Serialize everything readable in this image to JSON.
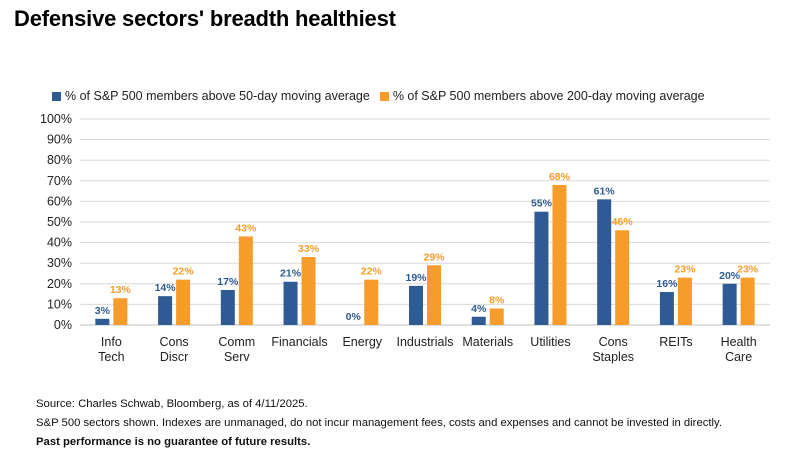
{
  "title": "Defensive sectors' breadth healthiest",
  "colors": {
    "series1": "#2e5b94",
    "series2": "#f79c2a",
    "label1": "#2e5b94",
    "label2": "#f79c2a",
    "grid": "#d9d9d9"
  },
  "chart_data": {
    "type": "bar",
    "categories": [
      [
        "Info",
        "Tech"
      ],
      [
        "Cons",
        "Discr"
      ],
      [
        "Comm",
        "Serv"
      ],
      [
        "Financials"
      ],
      [
        "Energy"
      ],
      [
        "Industrials"
      ],
      [
        "Materials"
      ],
      [
        "Utilities"
      ],
      [
        "Cons",
        "Staples"
      ],
      [
        "REITs"
      ],
      [
        "Health",
        "Care"
      ]
    ],
    "series": [
      {
        "name": "% of S&P 500 members above 50-day moving average",
        "values": [
          3,
          14,
          17,
          21,
          0,
          19,
          4,
          55,
          61,
          16,
          20
        ]
      },
      {
        "name": "% of S&P 500 members above 200-day moving average",
        "values": [
          13,
          22,
          43,
          33,
          22,
          29,
          8,
          68,
          46,
          23,
          23
        ]
      }
    ],
    "ylim": [
      0,
      100
    ],
    "yticks": [
      "0%",
      "10%",
      "20%",
      "30%",
      "40%",
      "50%",
      "60%",
      "70%",
      "80%",
      "90%",
      "100%"
    ],
    "grid": true,
    "legend": "top-left",
    "data_label_suffix": "%"
  },
  "notes": {
    "source": "Source: Charles Schwab, Bloomberg, as of 4/11/2025.",
    "disclaimer": "S&P 500 sectors shown. Indexes are unmanaged, do not incur management fees, costs and expenses and cannot be invested in directly.",
    "past_performance": "Past performance is no guarantee of future results."
  }
}
